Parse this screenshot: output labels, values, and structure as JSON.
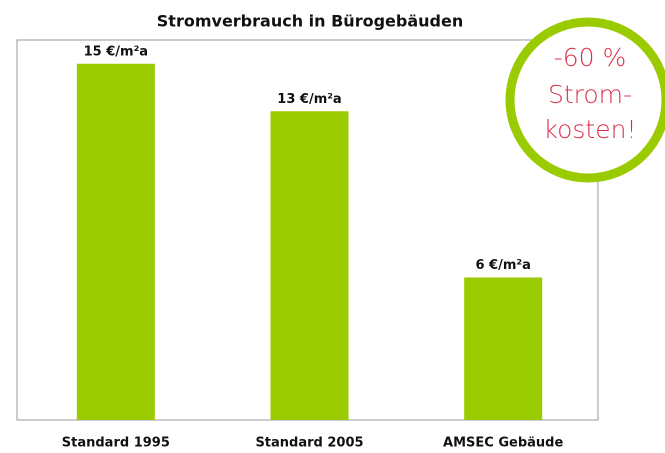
{
  "chart_data": {
    "type": "bar",
    "title": "Stromverbrauch in Bürogebäuden",
    "categories": [
      "Standard 1995",
      "Standard 2005",
      "AMSEC Gebäude"
    ],
    "values": [
      15,
      13,
      6
    ],
    "value_labels": [
      "15 €/m²a",
      "13 €/m²a",
      "6 €/m²a"
    ],
    "color": "#9aca00",
    "ylim": [
      0,
      16
    ],
    "annotation": [
      "-60 %",
      "Strom-",
      "kosten!"
    ]
  }
}
